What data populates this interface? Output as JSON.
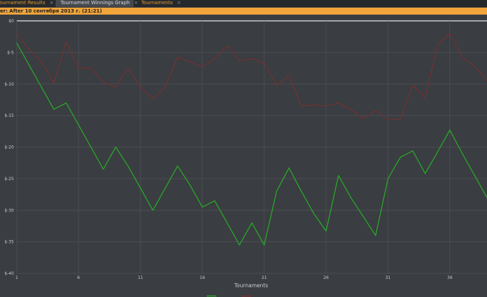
{
  "tabs": [
    {
      "label": "Tournament Results",
      "close": "×"
    },
    {
      "label": "Tournament Winnings Graph",
      "close": "×"
    },
    {
      "label": "Tournaments",
      "close": "×"
    }
  ],
  "filter": {
    "text": "er:  After 10 сентября 2013 г. (21:21)"
  },
  "colors": {
    "winnings": "#2aa12a",
    "allin_ev": "#7a3030",
    "tab_accent": "#e89a2c",
    "filter_bar": "#f0a43a"
  },
  "chart_data": {
    "type": "line",
    "xlabel": "Tournaments",
    "ylabel": "",
    "xlim": [
      1,
      39
    ],
    "ylim": [
      -40,
      0
    ],
    "x_ticks": [
      "1",
      "6",
      "11",
      "16",
      "21",
      "26",
      "31",
      "36"
    ],
    "y_ticks": [
      "$0",
      "$-5",
      "$-10",
      "$-15",
      "$-20",
      "$-25",
      "$-30",
      "$-35",
      "$-40"
    ],
    "grid": true,
    "legend": "bottom-center",
    "x": [
      1,
      2,
      3,
      4,
      5,
      6,
      7,
      8,
      9,
      10,
      11,
      12,
      13,
      14,
      15,
      16,
      17,
      18,
      19,
      20,
      21,
      22,
      23,
      24,
      25,
      26,
      27,
      28,
      29,
      30,
      31,
      32,
      33,
      34,
      35,
      36,
      37,
      38,
      39
    ],
    "series": [
      {
        "name": "",
        "color_key": "winnings",
        "values": [
          -3.5,
          -7.0,
          -10.5,
          -14.0,
          -13.0,
          -16.5,
          -20.0,
          -23.5,
          -20.0,
          -23.0,
          -26.5,
          -30.0,
          -26.5,
          -23.0,
          -26.0,
          -29.5,
          -28.5,
          -32.0,
          -35.5,
          -32.0,
          -35.5,
          -27.0,
          -23.3,
          -27.0,
          -30.5,
          -33.3,
          -24.5,
          -28.0,
          -31.0,
          -34.0,
          -25.0,
          -21.6,
          -20.6,
          -24.2,
          -20.8,
          -17.3,
          -21.0,
          -24.5,
          -28.0
        ]
      },
      {
        "name": "",
        "color_key": "allin_ev",
        "values": [
          -2.0,
          -4.5,
          -6.5,
          -9.8,
          -3.3,
          -7.5,
          -7.5,
          -9.7,
          -10.5,
          -7.5,
          -10.5,
          -12.3,
          -10.5,
          -5.7,
          -6.5,
          -7.3,
          -6.0,
          -4.0,
          -6.3,
          -6.0,
          -6.7,
          -10.2,
          -8.7,
          -13.5,
          -13.3,
          -13.5,
          -13.0,
          -14.0,
          -15.5,
          -14.2,
          -15.7,
          -15.5,
          -10.2,
          -12.2,
          -3.8,
          -2.0,
          -5.8,
          -7.2,
          -9.5
        ]
      }
    ]
  }
}
